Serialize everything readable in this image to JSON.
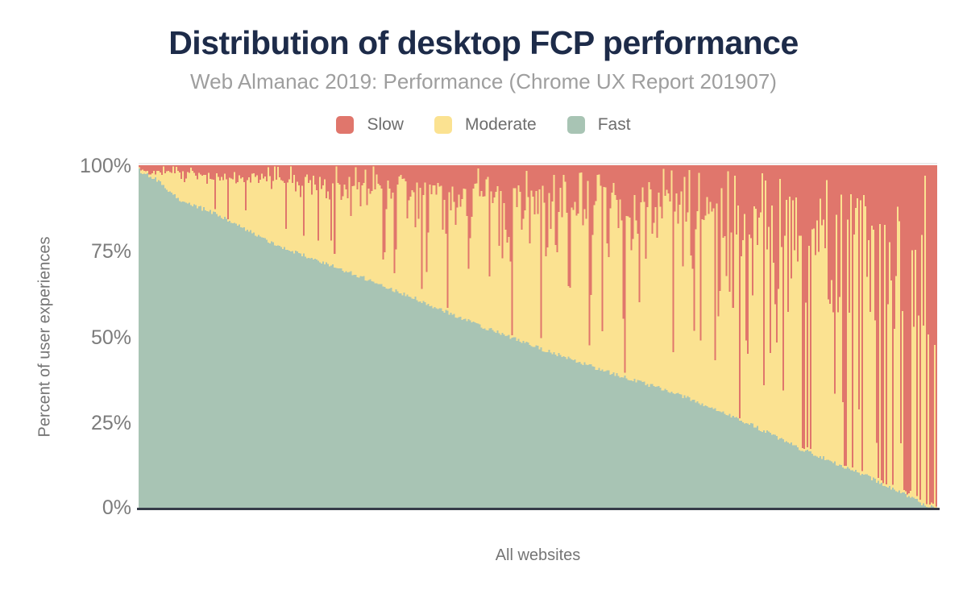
{
  "ui_colors": {
    "title_text": "#1d2b49",
    "subtitle_text": "#9e9e9e",
    "axis_text": "#757575",
    "tick_text": "#7b7b7b",
    "legend_text": "#6d6d6d",
    "baseline": "#353b48",
    "top_gridline": "#ececec",
    "background": "#ffffff"
  },
  "chart_data": {
    "type": "bar",
    "stacking": "percent",
    "title": "Distribution of desktop FCP performance",
    "subtitle": "Web Almanac 2019: Performance (Chrome UX Report 201907)",
    "xlabel": "All websites",
    "ylabel": "Percent of user experiences",
    "ylim": [
      0,
      100
    ],
    "yticks": [
      "0%",
      "25%",
      "50%",
      "75%",
      "100%"
    ],
    "legend_position": "top",
    "grid": "top 100% line only",
    "x_description": "~495 individual websites, one thin bar each, sorted by descending percent of fast FCP experiences; per-bar values estimated from pixels",
    "series": [
      {
        "name": "Slow",
        "color": "#e0766c"
      },
      {
        "name": "Moderate",
        "color": "#fbe291"
      },
      {
        "name": "Fast",
        "color": "#a8c4b4"
      }
    ],
    "n_bars": 495,
    "bar_value_model": "fast = fast_curve_pct(t) with small jitter; slow = lognormal noise around slow_mean_pct(t) with spike probability slow_spike_prob(t); moderate = remainder to 100%",
    "fast_curve_pct": [
      [
        0,
        98.5
      ],
      [
        0.02,
        96
      ],
      [
        0.05,
        90
      ],
      [
        0.1,
        85.5
      ],
      [
        0.17,
        77
      ],
      [
        0.25,
        70
      ],
      [
        0.33,
        62.8
      ],
      [
        0.42,
        54
      ],
      [
        0.5,
        47
      ],
      [
        0.58,
        40.5
      ],
      [
        0.67,
        34
      ],
      [
        0.75,
        26.6
      ],
      [
        0.83,
        17.5
      ],
      [
        0.9,
        11
      ],
      [
        0.95,
        5.5
      ],
      [
        0.975,
        2.5
      ],
      [
        1,
        0
      ]
    ],
    "slow_mean_pct": [
      [
        0,
        2
      ],
      [
        0.1,
        3.5
      ],
      [
        0.2,
        5
      ],
      [
        0.33,
        7
      ],
      [
        0.5,
        11
      ],
      [
        0.67,
        15
      ],
      [
        0.8,
        21
      ],
      [
        0.9,
        30
      ],
      [
        0.97,
        40
      ],
      [
        1,
        48
      ]
    ],
    "slow_noise_sigma": [
      [
        0,
        0.5
      ],
      [
        0.5,
        0.75
      ],
      [
        1,
        1.0
      ]
    ],
    "slow_spike_prob": [
      [
        0,
        0.04
      ],
      [
        0.5,
        0.1
      ],
      [
        1,
        0.22
      ]
    ],
    "noise_seed": 20190701
  }
}
